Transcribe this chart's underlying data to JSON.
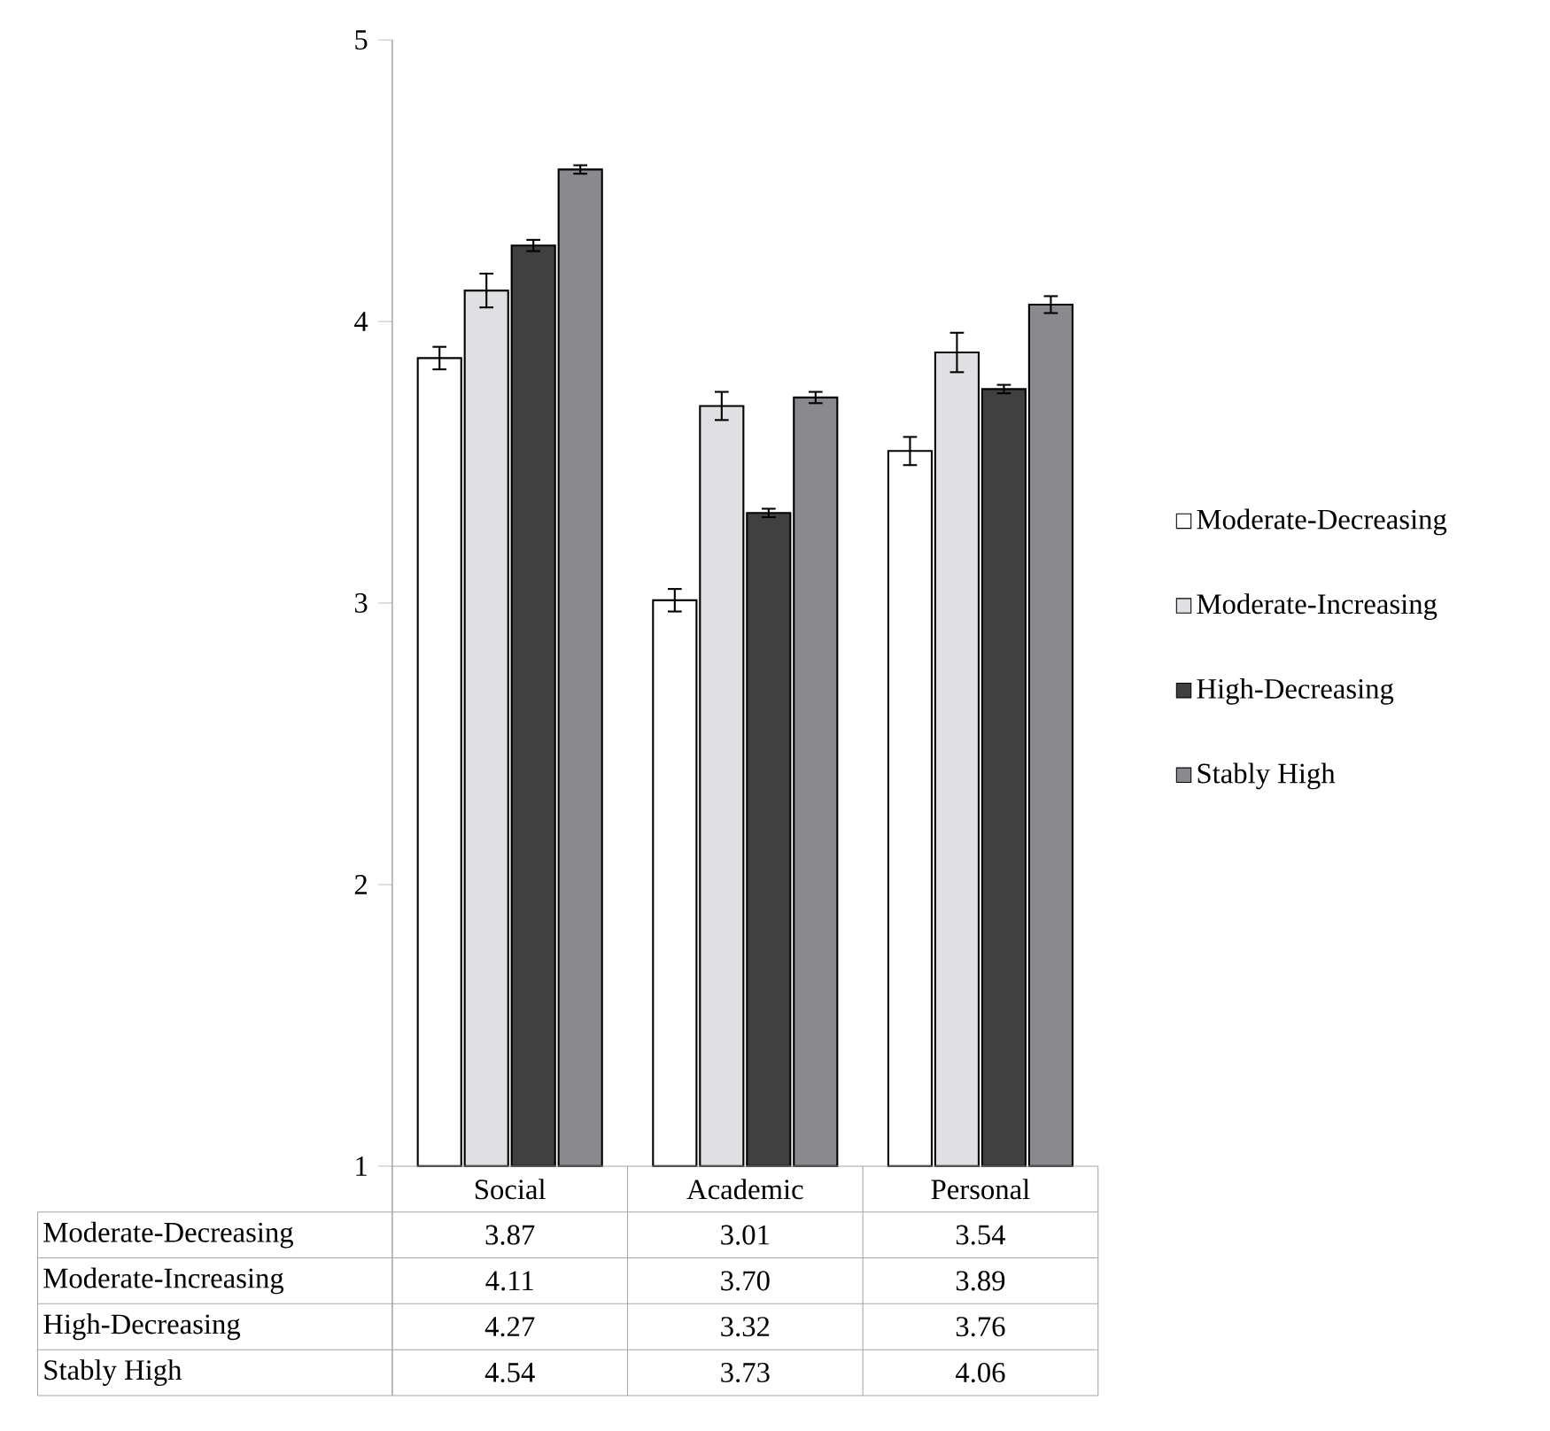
{
  "chart_data": {
    "type": "bar",
    "categories": [
      "Social",
      "Academic",
      "Personal"
    ],
    "series": [
      {
        "name": "Moderate-Decreasing",
        "color": "#ffffff",
        "values": [
          3.87,
          3.01,
          3.54
        ],
        "errors": [
          0.04,
          0.04,
          0.05
        ],
        "value_labels": [
          "3.87",
          "3.01",
          "3.54"
        ]
      },
      {
        "name": "Moderate-Increasing",
        "color": "#e0e0e2",
        "values": [
          4.11,
          3.7,
          3.89
        ],
        "errors": [
          0.06,
          0.05,
          0.07
        ],
        "value_labels": [
          "4.11",
          "3.70",
          "3.89"
        ]
      },
      {
        "name": "High-Decreasing",
        "color": "#404040",
        "values": [
          4.27,
          3.32,
          3.76
        ],
        "errors": [
          0.02,
          0.015,
          0.015
        ],
        "value_labels": [
          "4.27",
          "3.32",
          "3.76"
        ]
      },
      {
        "name": "Stably High",
        "color": "#8a8a8e",
        "values": [
          4.54,
          3.73,
          4.06
        ],
        "errors": [
          0.015,
          0.02,
          0.03
        ],
        "value_labels": [
          "4.54",
          "3.73",
          "4.06"
        ]
      }
    ],
    "ylim": [
      1,
      5
    ],
    "yticks": [
      1,
      2,
      3,
      4,
      5
    ],
    "legend": "right"
  }
}
